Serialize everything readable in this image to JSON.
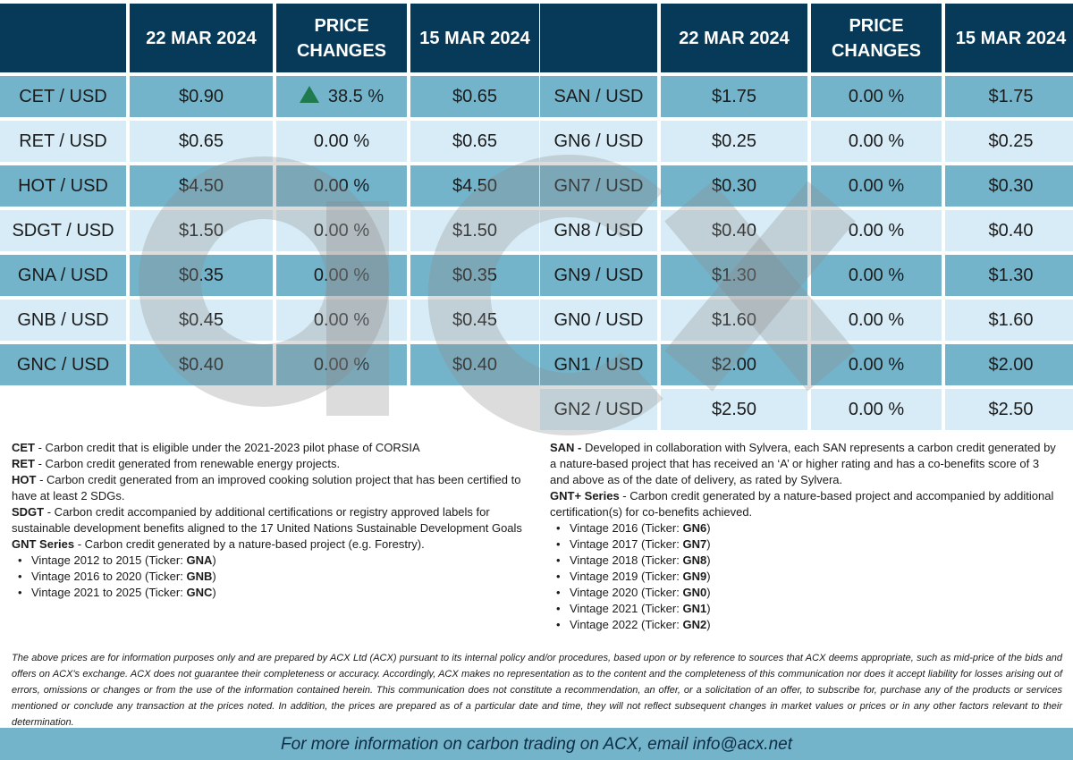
{
  "headers": {
    "pair": "",
    "date_current": "22 MAR 2024",
    "price_changes": "PRICE CHANGES",
    "date_previous": "15 MAR 2024"
  },
  "left_rows": [
    {
      "pair": "CET / USD",
      "current": "$0.90",
      "change": "38.5 %",
      "change_icon": "up-triangle-icon",
      "previous": "$0.65"
    },
    {
      "pair": "RET / USD",
      "current": "$0.65",
      "change": "0.00 %",
      "previous": "$0.65"
    },
    {
      "pair": "HOT / USD",
      "current": "$4.50",
      "change": "0.00 %",
      "previous": "$4.50"
    },
    {
      "pair": "SDGT / USD",
      "current": "$1.50",
      "change": "0.00 %",
      "previous": "$1.50"
    },
    {
      "pair": "GNA / USD",
      "current": "$0.35",
      "change": "0.00 %",
      "previous": "$0.35"
    },
    {
      "pair": "GNB / USD",
      "current": "$0.45",
      "change": "0.00 %",
      "previous": "$0.45"
    },
    {
      "pair": "GNC / USD",
      "current": "$0.40",
      "change": "0.00 %",
      "previous": "$0.40"
    }
  ],
  "right_rows": [
    {
      "pair": "SAN / USD",
      "current": "$1.75",
      "change": "0.00 %",
      "previous": "$1.75"
    },
    {
      "pair": "GN6 / USD",
      "current": "$0.25",
      "change": "0.00 %",
      "previous": "$0.25"
    },
    {
      "pair": "GN7 / USD",
      "current": "$0.30",
      "change": "0.00 %",
      "previous": "$0.30"
    },
    {
      "pair": "GN8 / USD",
      "current": "$0.40",
      "change": "0.00 %",
      "previous": "$0.40"
    },
    {
      "pair": "GN9 / USD",
      "current": "$1.30",
      "change": "0.00 %",
      "previous": "$1.30"
    },
    {
      "pair": "GN0 / USD",
      "current": "$1.60",
      "change": "0.00 %",
      "previous": "$1.60"
    },
    {
      "pair": "GN1 / USD",
      "current": "$2.00",
      "change": "0.00 %",
      "previous": "$2.00"
    },
    {
      "pair": "GN2 / USD",
      "current": "$2.50",
      "change": "0.00 %",
      "previous": "$2.50"
    }
  ],
  "notes_left": {
    "cet_term": "CET",
    "cet_text": " - Carbon credit that is eligible under the 2021-2023 pilot phase of CORSIA",
    "ret_term": "RET",
    "ret_text": " - Carbon credit generated from renewable energy projects.",
    "hot_term": "HOT",
    "hot_text": " - Carbon credit generated from an improved cooking solution project that has been certified to have at least 2 SDGs.",
    "sdgt_term": "SDGT",
    "sdgt_text": " - Carbon credit accompanied by additional certifications or registry approved labels for sustainable development benefits aligned to the 17 United Nations Sustainable Development Goals",
    "gnt_term": "GNT Series",
    "gnt_text": " - Carbon credit generated by a nature-based project (e.g. Forestry).",
    "vintages": [
      {
        "text": "Vintage 2012 to 2015 (Ticker: ",
        "ticker": "GNA",
        "close": ")"
      },
      {
        "text": "Vintage 2016 to 2020 (Ticker: ",
        "ticker": "GNB",
        "close": ")"
      },
      {
        "text": "Vintage 2021 to 2025 (Ticker: ",
        "ticker": "GNC",
        "close": ")"
      }
    ]
  },
  "notes_right": {
    "san_term": "SAN -",
    "san_text": " Developed in collaboration with Sylvera, each SAN represents a carbon credit generated by a nature-based project that has received an ‘A’ or higher rating and has a co-benefits score of 3 and above as of the date of delivery, as rated by Sylvera.",
    "gntplus_term": "GNT+ Series",
    "gntplus_text": " - Carbon credit generated by a nature-based project and accompanied by additional certification(s) for co-benefits achieved.",
    "vintages": [
      {
        "text": "Vintage 2016 (Ticker: ",
        "ticker": "GN6",
        "close": ")"
      },
      {
        "text": "Vintage 2017 (Ticker: ",
        "ticker": "GN7",
        "close": ")"
      },
      {
        "text": "Vintage 2018 (Ticker: ",
        "ticker": "GN8",
        "close": ")"
      },
      {
        "text": "Vintage 2019 (Ticker: ",
        "ticker": "GN9",
        "close": ")"
      },
      {
        "text": "Vintage 2020 (Ticker: ",
        "ticker": "GN0",
        "close": ")"
      },
      {
        "text": "Vintage 2021 (Ticker: ",
        "ticker": "GN1",
        "close": ")"
      },
      {
        "text": "Vintage 2022 (Ticker: ",
        "ticker": "GN2",
        "close": ")"
      }
    ]
  },
  "disclaimer": "The above prices are for information purposes only and are prepared by ACX Ltd (ACX) pursuant to its internal policy and/or procedures, based upon or by reference to sources that ACX deems appropriate, such as mid-price of the bids and offers on ACX's exchange. ACX does not guarantee their completeness or accuracy. Accordingly, ACX makes no representation as to the content and the completeness of this communication nor does it accept liability for losses arising out of errors, omissions or changes or from the use of the information contained herein. This communication does not constitute a recommendation, an offer, or a solicitation of an offer, to subscribe for, purchase any of the products or services mentioned or conclude any transaction at the prices noted. In addition, the prices are prepared as of a particular date and time, they will not reflect subsequent changes in market values or prices or in any other factors relevant to their determination.",
  "footer": "For more information on carbon trading on ACX, email info@acx.net",
  "watermark": {
    "text": "acx",
    "icon": "acx-logo-watermark"
  },
  "colors": {
    "header_bg": "#073a58",
    "row_dark": "#74b4cb",
    "row_light": "#d8ecf7",
    "up_arrow": "#1f7b4d",
    "footer_bg": "#74b4cb"
  }
}
